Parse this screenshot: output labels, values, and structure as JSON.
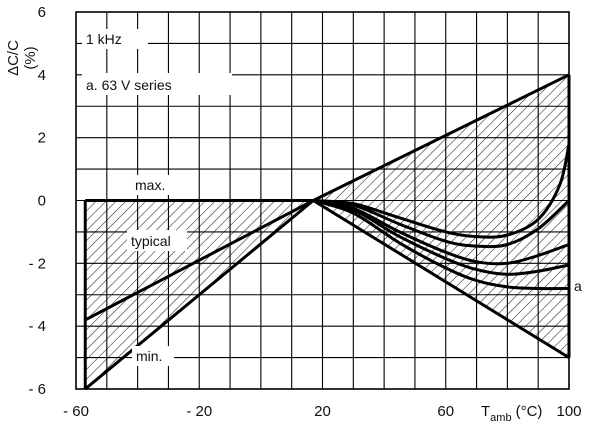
{
  "chart_data": {
    "type": "line",
    "title": "",
    "xlabel_main": "T",
    "xlabel_sub": "amb",
    "xlabel_unit": "(°C)",
    "ylabel_top": "ΔC/C",
    "ylabel_bottom": "(%)",
    "xlim": [
      -60,
      100
    ],
    "ylim": [
      -6,
      6
    ],
    "x_ticks": [
      {
        "value": -60,
        "label": "- 60"
      },
      {
        "value": -20,
        "label": "- 20"
      },
      {
        "value": 20,
        "label": "20"
      },
      {
        "value": 60,
        "label": "60"
      },
      {
        "value": 100,
        "label": "100"
      }
    ],
    "y_ticks": [
      {
        "value": -6,
        "label": "- 6"
      },
      {
        "value": -4,
        "label": "- 4"
      },
      {
        "value": -2,
        "label": "- 2"
      },
      {
        "value": 0,
        "label": "0"
      },
      {
        "value": 2,
        "label": "2"
      },
      {
        "value": 4,
        "label": "4"
      },
      {
        "value": 6,
        "label": "6"
      }
    ],
    "grid": true,
    "grid_x_step": 10,
    "grid_y_step": 1,
    "annotations": {
      "frequency": "1 kHz",
      "series": "a. 63 V   series",
      "max": "max.",
      "typical": "typical",
      "min": "min.",
      "curve_a": "a"
    },
    "envelope_left": {
      "upper": [
        [
          -57,
          0
        ],
        [
          17,
          0
        ]
      ],
      "lower": [
        [
          -57,
          -6
        ],
        [
          17,
          0
        ]
      ]
    },
    "envelope_right": {
      "upper": [
        [
          17,
          0
        ],
        [
          100,
          4
        ]
      ],
      "lower": [
        [
          17,
          0
        ],
        [
          100,
          -5
        ]
      ]
    },
    "series": [
      {
        "label": "max",
        "points": [
          [
            -57,
            0
          ],
          [
            17,
            0
          ],
          [
            100,
            4
          ]
        ]
      },
      {
        "label": "typical",
        "points": [
          [
            -57,
            -3.8
          ],
          [
            17,
            0
          ]
        ]
      },
      {
        "label": "min",
        "points": [
          [
            -57,
            -6
          ],
          [
            17,
            0
          ],
          [
            100,
            -5
          ]
        ]
      }
    ],
    "right_curves": [
      {
        "points": [
          [
            17,
            0
          ],
          [
            30,
            -0.1
          ],
          [
            45,
            -0.55
          ],
          [
            60,
            -1.0
          ],
          [
            70,
            -1.15
          ],
          [
            80,
            -1.1
          ],
          [
            90,
            -0.6
          ],
          [
            97,
            0.5
          ],
          [
            100,
            1.8
          ]
        ]
      },
      {
        "points": [
          [
            17,
            0
          ],
          [
            30,
            -0.15
          ],
          [
            45,
            -0.75
          ],
          [
            60,
            -1.3
          ],
          [
            70,
            -1.45
          ],
          [
            80,
            -1.4
          ],
          [
            90,
            -0.9
          ],
          [
            100,
            0
          ]
        ]
      },
      {
        "points": [
          [
            17,
            0
          ],
          [
            30,
            -0.25
          ],
          [
            45,
            -1.0
          ],
          [
            60,
            -1.65
          ],
          [
            70,
            -1.95
          ],
          [
            80,
            -2.0
          ],
          [
            90,
            -1.75
          ],
          [
            100,
            -1.4
          ]
        ]
      },
      {
        "points": [
          [
            17,
            0
          ],
          [
            30,
            -0.3
          ],
          [
            45,
            -1.15
          ],
          [
            60,
            -1.85
          ],
          [
            70,
            -2.2
          ],
          [
            80,
            -2.35
          ],
          [
            90,
            -2.25
          ],
          [
            100,
            -2.05
          ]
        ]
      },
      {
        "label": "a",
        "points": [
          [
            17,
            0
          ],
          [
            30,
            -0.4
          ],
          [
            45,
            -1.35
          ],
          [
            60,
            -2.15
          ],
          [
            70,
            -2.55
          ],
          [
            80,
            -2.75
          ],
          [
            90,
            -2.8
          ],
          [
            100,
            -2.8
          ]
        ]
      }
    ]
  }
}
